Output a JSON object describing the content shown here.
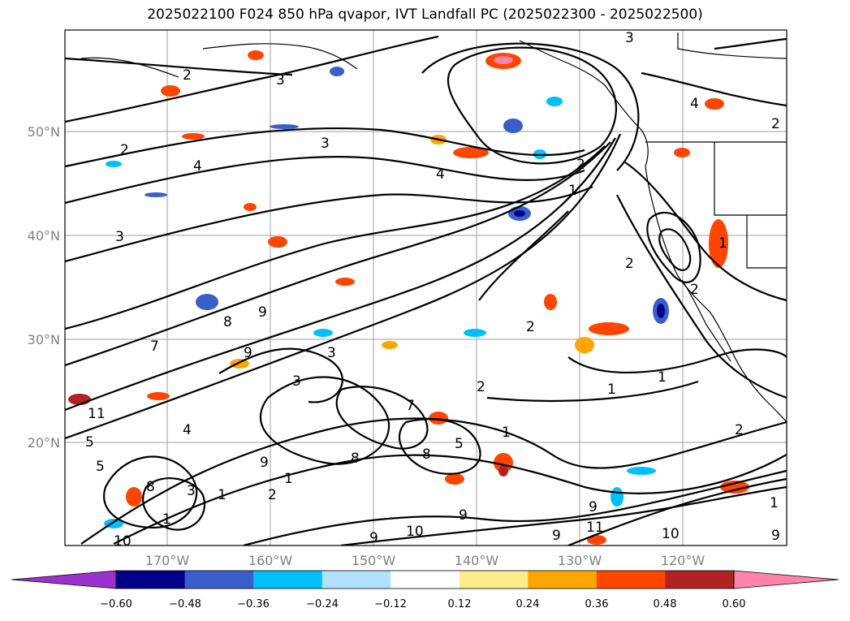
{
  "title": "2025022100 F024 850 hPa qvapor, IVT Landfall PC (2025022300 - 2025022500)",
  "lat_labels": [
    "50°N",
    "40°N",
    "30°N",
    "20°N"
  ],
  "lon_labels": [
    "170°W",
    "160°W",
    "150°W",
    "140°W",
    "130°W",
    "120°W"
  ],
  "colorbar": {
    "colors": [
      "#9a32cd",
      "#00008b",
      "#3a5fcd",
      "#00bfff",
      "#b0e2ff",
      "#ffffff",
      "#ffec8b",
      "#ffa500",
      "#ff4500",
      "#b22222",
      "#ff82ab"
    ],
    "ticks": [
      "−0.60",
      "−0.48",
      "−0.36",
      "−0.24",
      "−0.12",
      "0.12",
      "0.24",
      "0.36",
      "0.48",
      "0.60"
    ]
  },
  "contour_labels": [
    "3",
    "2",
    "3",
    "2",
    "4",
    "3",
    "2",
    "4",
    "3",
    "2",
    "4",
    "2",
    "1",
    "1",
    "2",
    "9",
    "3",
    "8",
    "7",
    "9",
    "11",
    "5",
    "1",
    "3",
    "2",
    "2",
    "1",
    "4",
    "1",
    "2",
    "8",
    "8",
    "7",
    "1",
    "5",
    "9",
    "1",
    "5",
    "8",
    "3",
    "1",
    "2",
    "9",
    "11",
    "10",
    "9",
    "10",
    "9",
    "9",
    "10",
    "9",
    "1"
  ],
  "colors": {
    "coast": "#000000",
    "grid": "#9e9e9e",
    "contour": "#000000"
  }
}
